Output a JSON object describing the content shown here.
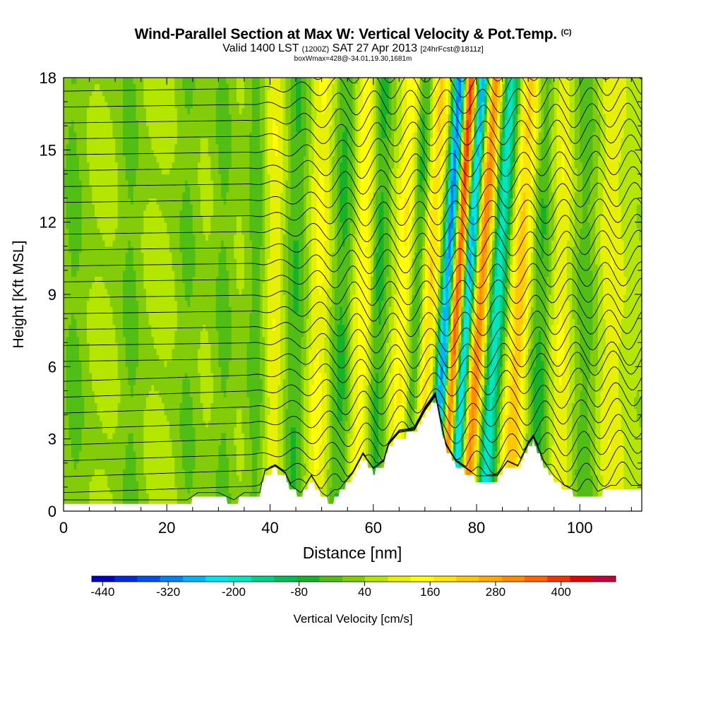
{
  "header": {
    "title_main": "Wind-Parallel Section at Max W: Vertical Velocity & Pot.Temp.",
    "title_badge": "(C)",
    "valid_a": "Valid 1400 LST",
    "valid_utc": "(1200Z)",
    "valid_b": "SAT 27 Apr 2013",
    "forecast_tag": "[24hrFcst@1811z]",
    "subtitle": "boxWmax=428@-34.01,19.30,1681m"
  },
  "chart_data": {
    "type": "heatmap",
    "title": "Wind-Parallel Section at Max W: Vertical Velocity & Pot.Temp.",
    "xlabel": "Distance [nm]",
    "ylabel": "Height [Kft MSL]",
    "xlim": [
      0,
      112
    ],
    "ylim": [
      0,
      18
    ],
    "x_ticks": [
      0,
      20,
      40,
      60,
      80,
      100
    ],
    "y_ticks": [
      0,
      3,
      6,
      9,
      12,
      15,
      18
    ],
    "colorbar": {
      "label": "Vertical Velocity [cm/s]",
      "tick_labels": [
        "-440",
        "-320",
        "-200",
        "-80",
        "40",
        "160",
        "280",
        "400"
      ],
      "tick_values": [
        -440,
        -320,
        -200,
        -80,
        40,
        160,
        280,
        400
      ],
      "min": -460,
      "max": 500,
      "step": 40,
      "colors": [
        "#0000c8",
        "#0028e6",
        "#0050f0",
        "#0082f5",
        "#00b4f5",
        "#00e6f0",
        "#00e6be",
        "#00d28c",
        "#00be5a",
        "#14b428",
        "#50be14",
        "#82cc0a",
        "#b4e600",
        "#e6f000",
        "#ffff00",
        "#ffe600",
        "#ffc800",
        "#ffaa00",
        "#ff8c00",
        "#ff6400",
        "#f53200",
        "#e60000",
        "#c8003c"
      ]
    },
    "terrain_profile": [
      [
        0,
        0.3
      ],
      [
        6,
        0.3
      ],
      [
        8,
        0.3
      ],
      [
        12,
        0.3
      ],
      [
        16,
        0.3
      ],
      [
        20,
        0.3
      ],
      [
        24,
        0.3
      ],
      [
        26,
        0.6
      ],
      [
        30,
        0.6
      ],
      [
        33,
        0.3
      ],
      [
        35,
        0.6
      ],
      [
        38,
        0.6
      ],
      [
        39,
        1.5
      ],
      [
        41,
        1.7
      ],
      [
        43,
        1.4
      ],
      [
        44,
        0.9
      ],
      [
        46,
        0.6
      ],
      [
        48,
        1.3
      ],
      [
        50,
        0.6
      ],
      [
        52,
        0.3
      ],
      [
        54,
        0.9
      ],
      [
        56,
        1.4
      ],
      [
        58,
        2.2
      ],
      [
        60,
        1.6
      ],
      [
        62,
        1.9
      ],
      [
        63,
        2.6
      ],
      [
        65,
        3.1
      ],
      [
        68,
        3.2
      ],
      [
        70,
        4.0
      ],
      [
        72,
        4.6
      ],
      [
        74,
        2.6
      ],
      [
        76,
        1.9
      ],
      [
        78,
        1.6
      ],
      [
        80,
        1.3
      ],
      [
        82,
        1.3
      ],
      [
        84,
        1.3
      ],
      [
        86,
        1.9
      ],
      [
        88,
        1.7
      ],
      [
        90,
        2.6
      ],
      [
        91,
        2.9
      ],
      [
        93,
        1.9
      ],
      [
        95,
        1.3
      ],
      [
        97,
        0.9
      ],
      [
        100,
        0.6
      ],
      [
        103,
        0.6
      ],
      [
        106,
        0.9
      ],
      [
        108,
        0.9
      ],
      [
        110,
        0.9
      ],
      [
        112,
        0.9
      ]
    ],
    "velocity_features": [
      {
        "x": 74.5,
        "slope": 0.28,
        "width": 1.0,
        "amp": -440
      },
      {
        "x": 76.2,
        "slope": 0.3,
        "width": 1.1,
        "amp": 430
      },
      {
        "x": 78.3,
        "slope": 0.32,
        "width": 1.0,
        "amp": -400
      },
      {
        "x": 80.8,
        "slope": 0.32,
        "width": 1.3,
        "amp": 280
      },
      {
        "x": 84.0,
        "slope": 0.3,
        "width": 1.3,
        "amp": -250
      },
      {
        "x": 88.5,
        "slope": 0.25,
        "width": 1.5,
        "amp": 180
      },
      {
        "x": 71.0,
        "slope": 0.25,
        "width": 1.3,
        "amp": 150
      },
      {
        "x": 68.5,
        "slope": 0.2,
        "width": 1.1,
        "amp": -120
      },
      {
        "x": 66.0,
        "slope": 0.18,
        "width": 1.3,
        "amp": 110
      },
      {
        "x": 61.0,
        "slope": 0.12,
        "width": 1.2,
        "amp": -110
      },
      {
        "x": 58.0,
        "slope": 0.12,
        "width": 1.5,
        "amp": 100
      },
      {
        "x": 54.0,
        "slope": 0.1,
        "width": 1.5,
        "amp": -100
      },
      {
        "x": 49.5,
        "slope": 0.1,
        "width": 1.6,
        "amp": 80
      },
      {
        "x": 45.0,
        "slope": 0.06,
        "width": 1.6,
        "amp": -90
      },
      {
        "x": 40.5,
        "slope": 0.04,
        "width": 1.6,
        "amp": 70
      },
      {
        "x": 37.5,
        "slope": 0.02,
        "width": 1.5,
        "amp": -80
      },
      {
        "x": 92.5,
        "slope": 0.1,
        "width": 1.8,
        "amp": -110
      },
      {
        "x": 96.0,
        "slope": 0.05,
        "width": 1.8,
        "amp": 80
      },
      {
        "x": 101.0,
        "slope": 0.03,
        "width": 1.8,
        "amp": -70
      },
      {
        "x": 106.0,
        "slope": 0.02,
        "width": 1.8,
        "amp": 60
      },
      {
        "x": 2.0,
        "slope": -0.02,
        "width": 1.8,
        "amp": -60
      },
      {
        "x": 13.0,
        "slope": -0.02,
        "width": 1.6,
        "amp": -60
      },
      {
        "x": 24.0,
        "slope": 0.0,
        "width": 1.6,
        "amp": -55
      },
      {
        "x": 31.0,
        "slope": 0.0,
        "width": 1.5,
        "amp": -60
      }
    ],
    "isentrope_count": 28,
    "isentrope_wave_zone": {
      "x_start": 36,
      "x_end": 112,
      "amplitude_kft": 0.5
    }
  }
}
